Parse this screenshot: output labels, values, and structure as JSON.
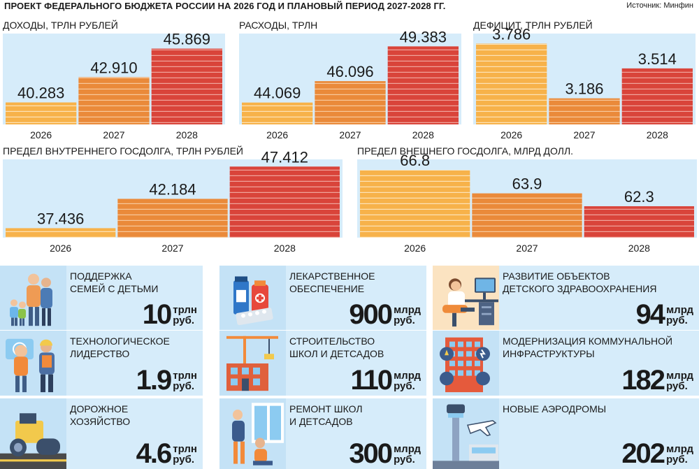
{
  "header": {
    "title": "ПРОЕКТ ФЕДЕРАЛЬНОГО БЮДЖЕТА РОССИИ НА 2026 ГОД И ПЛАНОВЫЙ ПЕРИОД 2027-2028 ГГ.",
    "source": "Источник: Минфин"
  },
  "colors": {
    "bg": "#d6ecfa",
    "c2026": "#f7b24a",
    "c2027": "#ea8a3a",
    "c2028": "#d9443a"
  },
  "chart_data": [
    {
      "type": "bar",
      "title": "ДОХОДЫ, ТРЛН РУБЛЕЙ",
      "categories": [
        "2026",
        "2027",
        "2028"
      ],
      "values": [
        40.283,
        42.91,
        45.869
      ],
      "labels": [
        "40.283",
        "42.910",
        "45.869"
      ]
    },
    {
      "type": "bar",
      "title": "РАСХОДЫ, ТРЛН",
      "categories": [
        "2026",
        "2027",
        "2028"
      ],
      "values": [
        44.069,
        46.096,
        49.383
      ],
      "labels": [
        "44.069",
        "46.096",
        "49.383"
      ]
    },
    {
      "type": "bar",
      "title": "ДЕФИЦИТ, ТРЛН РУБЛЕЙ",
      "categories": [
        "2026",
        "2027",
        "2028"
      ],
      "values": [
        3.786,
        3.186,
        3.514
      ],
      "labels": [
        "3.786",
        "3.186",
        "3.514"
      ]
    },
    {
      "type": "bar",
      "title": "ПРЕДЕЛ ВНУТРЕННЕГО ГОСДОЛГА, ТРЛН РУБЛЕЙ",
      "categories": [
        "2026",
        "2027",
        "2028"
      ],
      "values": [
        37.436,
        42.184,
        47.412
      ],
      "labels": [
        "37.436",
        "42.184",
        "47.412"
      ]
    },
    {
      "type": "bar",
      "title": "ПРЕДЕЛ ВНЕШНЕГО ГОСДОЛГА,  МЛРД ДОЛЛ.",
      "categories": [
        "2026",
        "2027",
        "2028"
      ],
      "values": [
        66.8,
        63.9,
        62.3
      ],
      "labels": [
        "66.8",
        "63.9",
        "62.3"
      ]
    }
  ],
  "cards": [
    {
      "icon": "family-icon",
      "label": [
        "Поддержка",
        "семей с детьми"
      ],
      "amount": "10",
      "unit": [
        "трлн",
        "руб."
      ]
    },
    {
      "icon": "medicine-icon",
      "label": [
        "Лекарственное",
        "обеспечение"
      ],
      "amount": "900",
      "unit": [
        "млрд",
        "руб."
      ]
    },
    {
      "icon": "pediatric-care-icon",
      "label": [
        "Развитие объектов",
        "детского здравоохранения"
      ],
      "amount": "94",
      "unit": [
        "млрд",
        "руб."
      ]
    },
    {
      "icon": "engineers-icon",
      "label": [
        "Технологическое",
        "лидерство"
      ],
      "amount": "1.9",
      "unit": [
        "трлн",
        "руб."
      ]
    },
    {
      "icon": "construction-crane-icon",
      "label": [
        "Строительство",
        "школ и детсадов"
      ],
      "amount": "110",
      "unit": [
        "млрд",
        "руб."
      ]
    },
    {
      "icon": "utilities-building-icon",
      "label": [
        "Модернизация коммунальной",
        "инфраструктуры"
      ],
      "amount": "182",
      "unit": [
        "млрд",
        "руб."
      ]
    },
    {
      "icon": "road-roller-icon",
      "label": [
        "Дорожное",
        "хозяйство"
      ],
      "amount": "4.6",
      "unit": [
        "трлн",
        "руб."
      ]
    },
    {
      "icon": "repair-workers-icon",
      "label": [
        "Ремонт школ",
        "и детсадов"
      ],
      "amount": "300",
      "unit": [
        "млрд",
        "руб."
      ]
    },
    {
      "icon": "airport-icon",
      "label": [
        "Новые аэродромы"
      ],
      "amount": "202",
      "unit": [
        "млрд",
        "руб."
      ]
    }
  ]
}
